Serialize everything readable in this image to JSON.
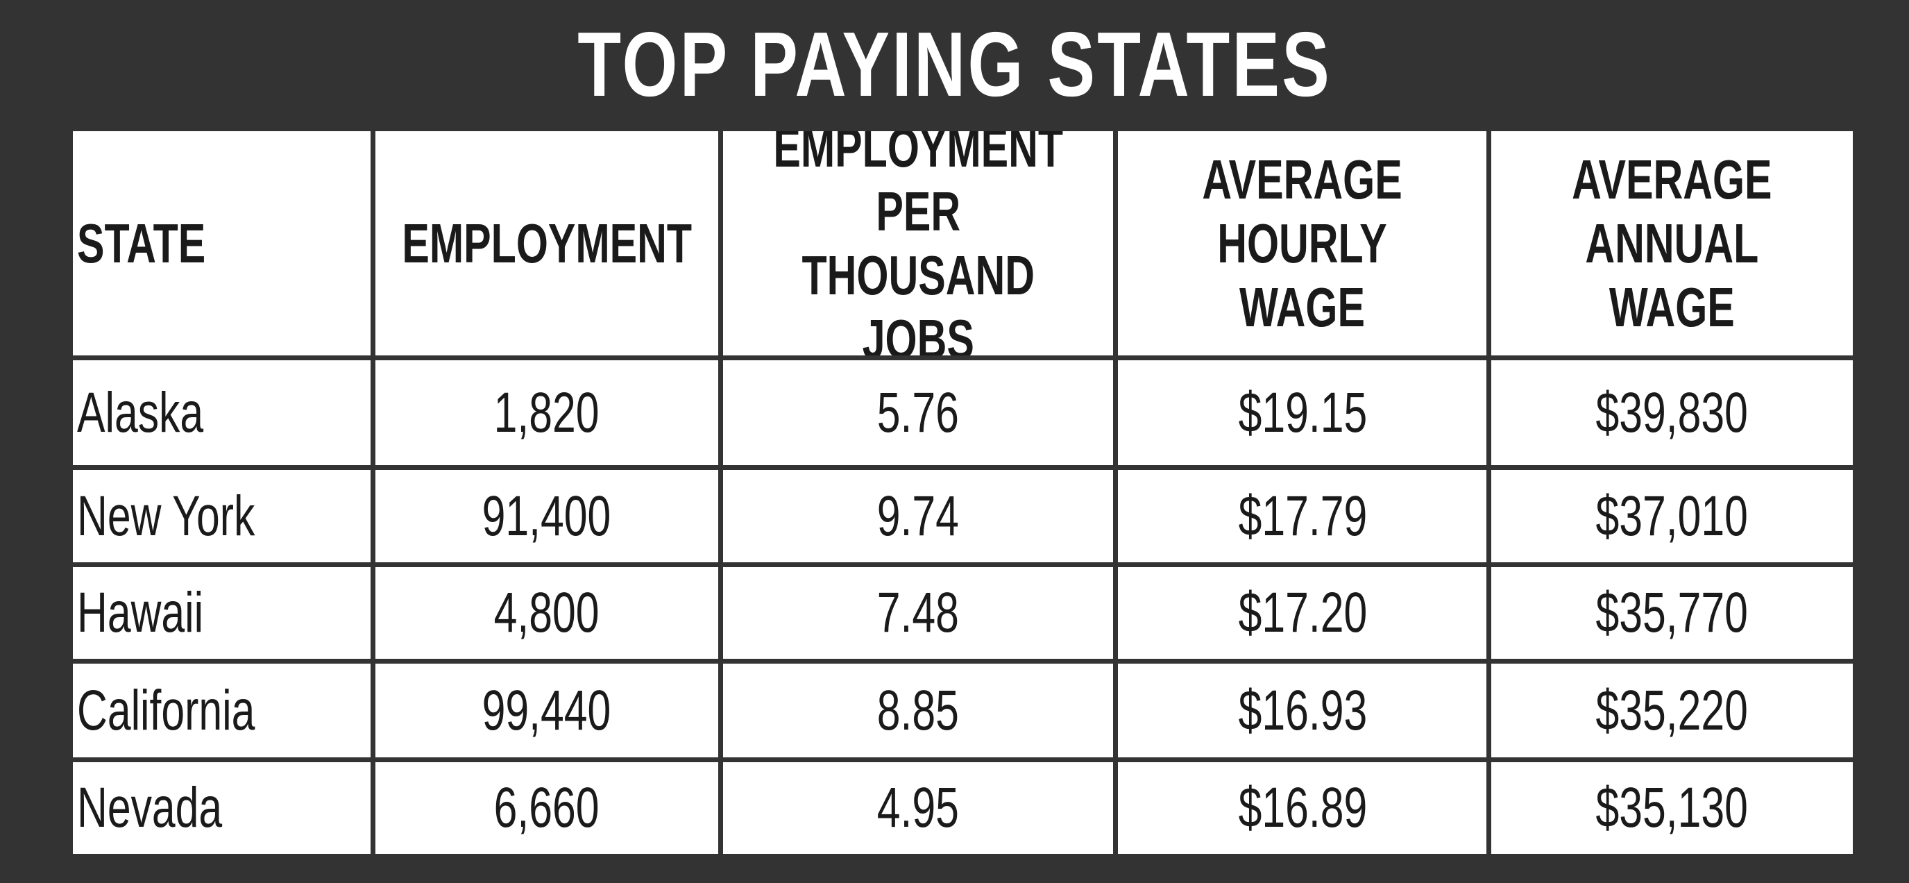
{
  "header": {
    "title": "TOP PAYING STATES"
  },
  "table": {
    "columns": [
      "STATE",
      "EMPLOYMENT",
      "EMPLOYMENT PER THOUSAND JOBS",
      "AVERAGE HOURLY WAGE",
      "AVERAGE ANNUAL WAGE"
    ],
    "rows": [
      [
        "Alaska",
        "1,820",
        "5.76",
        "$19.15",
        "$39,830"
      ],
      [
        "New York",
        "91,400",
        "9.74",
        "$17.79",
        "$37,010"
      ],
      [
        "Hawaii",
        "4,800",
        "7.48",
        "$17.20",
        "$35,770"
      ],
      [
        "California",
        "99,440",
        "8.85",
        "$16.93",
        "$35,220"
      ],
      [
        "Nevada",
        "6,660",
        "4.95",
        "$16.89",
        "$35,130"
      ]
    ]
  }
}
